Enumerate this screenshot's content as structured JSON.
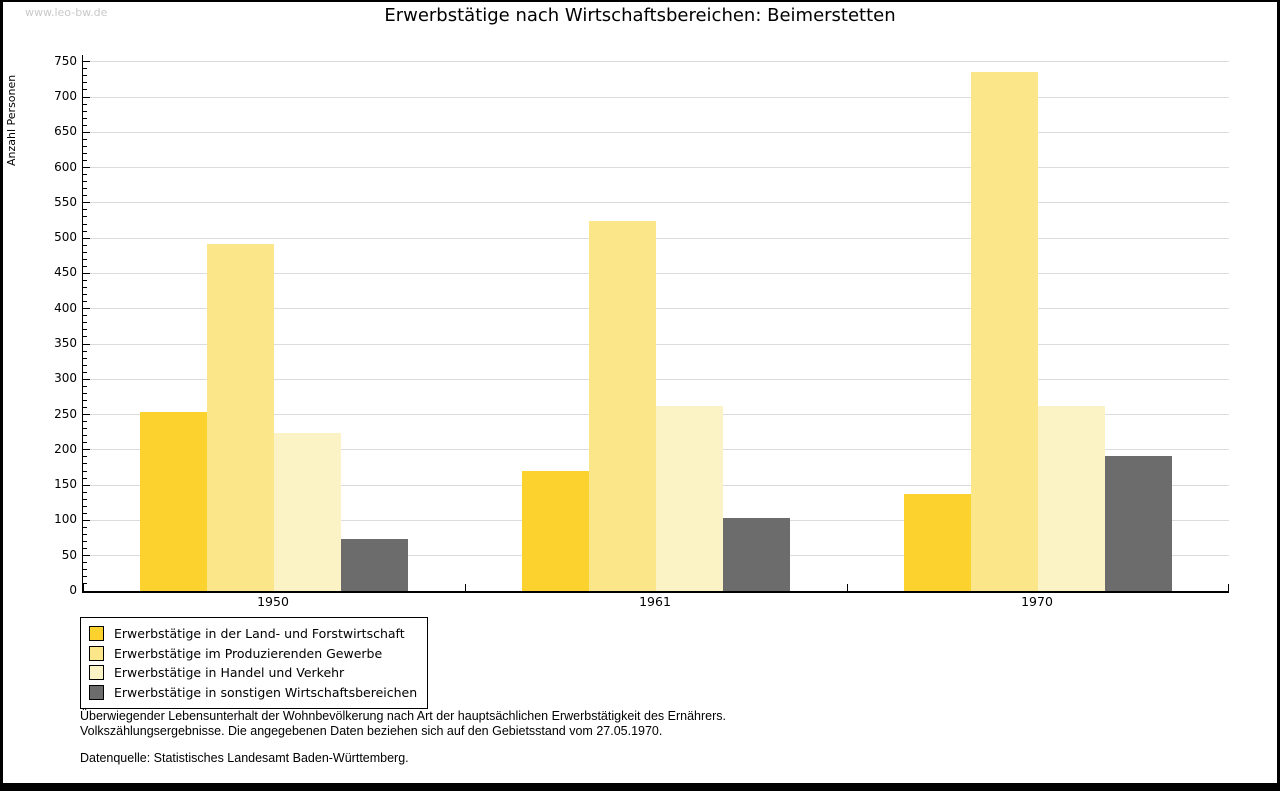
{
  "watermark": "www.leo-bw.de",
  "chart_data": {
    "type": "bar",
    "title": "Erwerbstätige nach Wirtschaftsbereichen: Beimerstetten",
    "ylabel": "Anzahl Personen",
    "xlabel": "",
    "categories": [
      "1950",
      "1961",
      "1970"
    ],
    "series": [
      {
        "name": "Erwerbstätige in der Land- und Forstwirtschaft",
        "color": "#fcd22e",
        "values": [
          253,
          170,
          137
        ]
      },
      {
        "name": "Erwerbstätige im Produzierenden Gewerbe",
        "color": "#fbe68a",
        "values": [
          492,
          524,
          736
        ]
      },
      {
        "name": "Erwerbstätige in Handel und Verkehr",
        "color": "#fbf2c6",
        "values": [
          224,
          262,
          262
        ]
      },
      {
        "name": "Erwerbstätige in sonstigen Wirtschaftsbereichen",
        "color": "#6c6c6c",
        "values": [
          74,
          104,
          191
        ]
      }
    ],
    "ylim": [
      0,
      750
    ],
    "ytick_step": 50,
    "yminor_step": 10,
    "grid": true,
    "gridline_color": "#dcdcdc",
    "legend_position": "bottom-left"
  },
  "footer": {
    "line1": "Überwiegender Lebensunterhalt der Wohnbevölkerung nach Art der hauptsächlichen Erwerbstätigkeit des Ernährers.",
    "line2": "Volkszählungsergebnisse. Die angegebenen Daten beziehen sich auf den Gebietsstand vom 27.05.1970.",
    "source": "Datenquelle: Statistisches Landesamt Baden-Württemberg."
  }
}
